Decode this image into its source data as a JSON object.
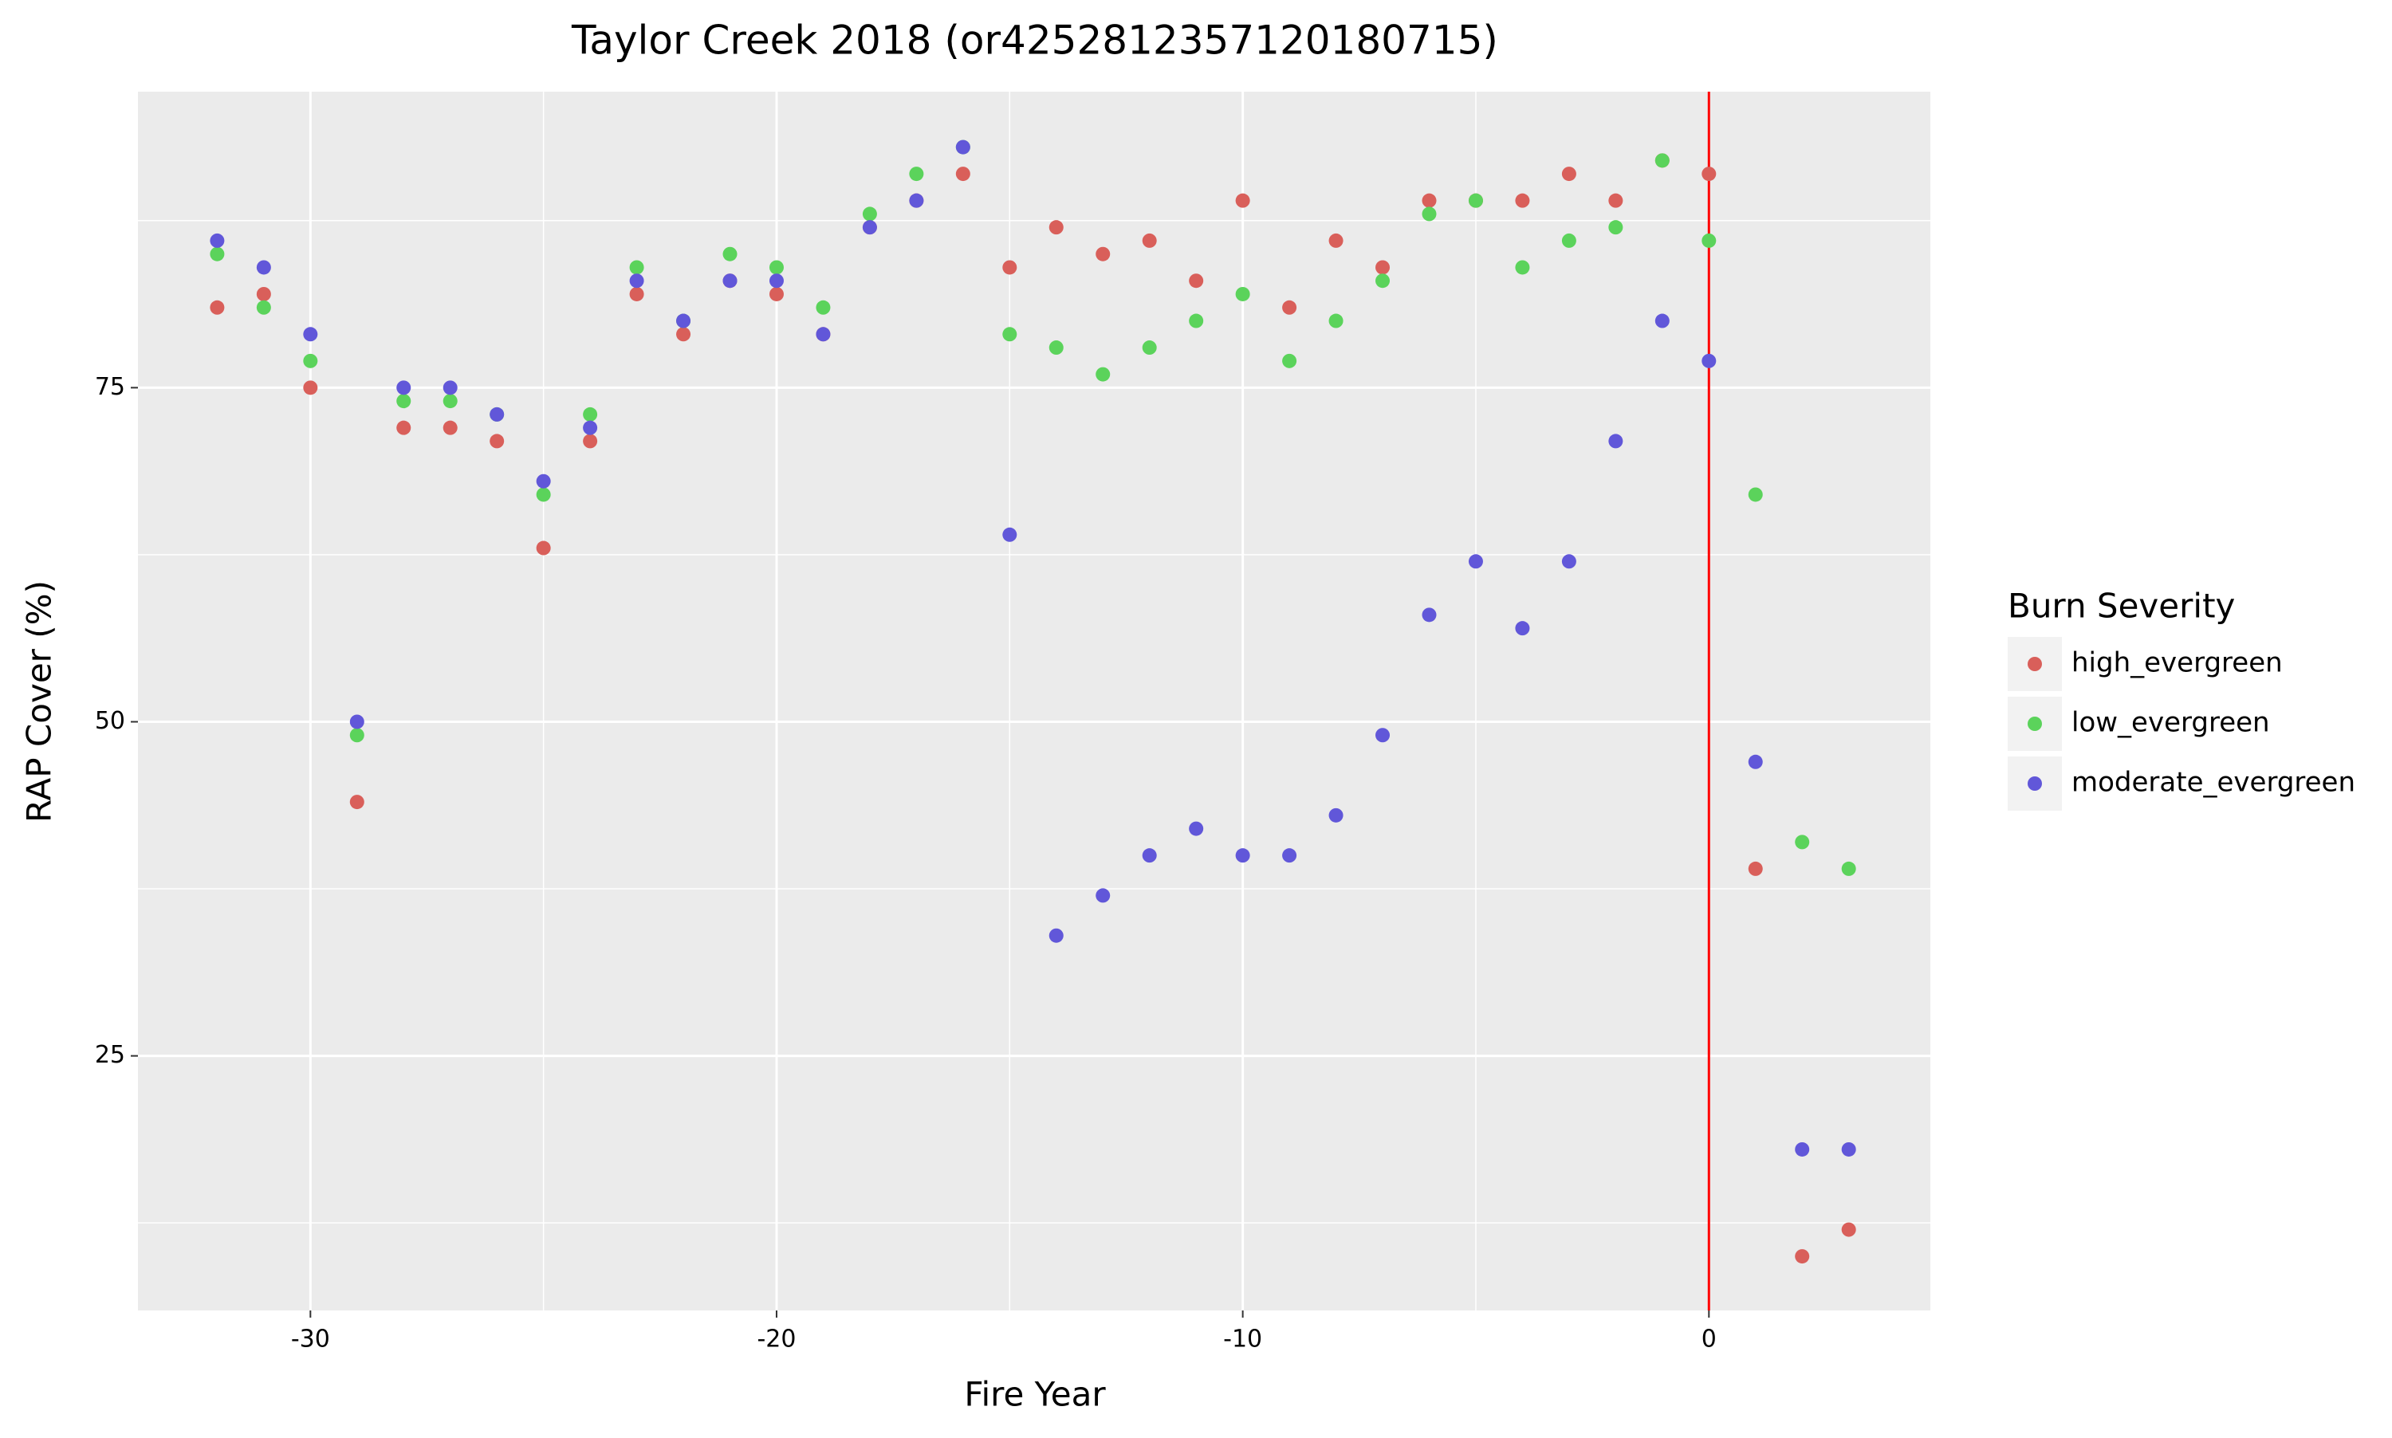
{
  "chart_data": {
    "type": "scatter",
    "title": "Taylor Creek 2018 (or4252812357120180715)",
    "x_label": "Fire Year",
    "y_label": "RAP Cover (%)",
    "legend_title": "Burn Severity",
    "x": [
      -32,
      -31,
      -30,
      -29,
      -28,
      -27,
      -26,
      -25,
      -24,
      -23,
      -22,
      -21,
      -20,
      -19,
      -18,
      -17,
      -16,
      -15,
      -14,
      -13,
      -12,
      -11,
      -10,
      -9,
      -8,
      -7,
      -6,
      -5,
      -4,
      -3,
      -2,
      -1,
      0,
      1,
      2,
      3
    ],
    "series": [
      {
        "name": "high_evergreen",
        "color": "#d95f5a",
        "values": [
          81,
          82,
          75,
          44,
          72,
          72,
          71,
          63,
          71,
          82,
          79,
          83,
          82,
          79,
          87,
          89,
          91,
          84,
          87,
          85,
          86,
          83,
          89,
          81,
          86,
          84,
          89,
          89,
          89,
          91,
          89,
          92,
          91,
          39,
          10,
          12
        ]
      },
      {
        "name": "low_evergreen",
        "color": "#5bd35b",
        "values": [
          85,
          81,
          77,
          49,
          74,
          74,
          73,
          67,
          73,
          84,
          80,
          85,
          84,
          81,
          88,
          91,
          93,
          79,
          78,
          76,
          78,
          80,
          82,
          77,
          80,
          83,
          88,
          89,
          84,
          86,
          87,
          92,
          86,
          67,
          41,
          39
        ]
      },
      {
        "name": "moderate_evergreen",
        "color": "#6157d9",
        "values": [
          86,
          84,
          79,
          50,
          75,
          75,
          73,
          68,
          72,
          83,
          80,
          83,
          83,
          79,
          87,
          89,
          93,
          64,
          34,
          37,
          40,
          42,
          40,
          40,
          43,
          49,
          58,
          62,
          57,
          62,
          71,
          80,
          77,
          47,
          18,
          18
        ]
      }
    ],
    "xlim": [
      -33.7,
      4.75
    ],
    "ylim": [
      5.95,
      97.15
    ],
    "xticks": [
      -30,
      -20,
      -10,
      0
    ],
    "yticks": [
      25,
      50,
      75
    ],
    "xminorticks": [
      -25,
      -15,
      -5
    ],
    "yminorticks": [
      12.5,
      37.5,
      62.5,
      87.5
    ],
    "vline": {
      "x": 0,
      "color": "#ff0000"
    },
    "grid": true,
    "legend": "right"
  }
}
